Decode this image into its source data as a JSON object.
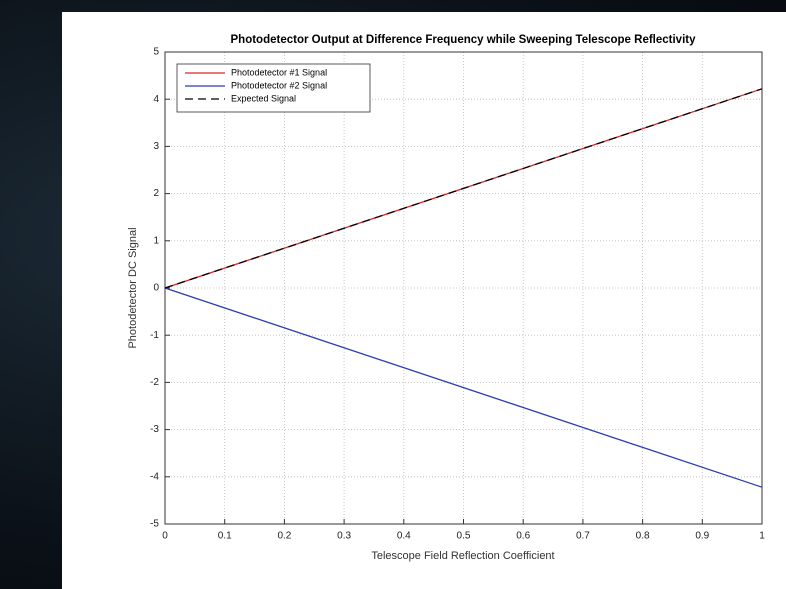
{
  "chart_data": {
    "type": "line",
    "title": "Photodetector Output at Difference Frequency while Sweeping Telescope Reflectivity",
    "x_label": "Telescope Field Reflection Coefficient",
    "y_label": "Photodetector DC Signal",
    "x": [
      0,
      1
    ],
    "series": [
      {
        "name": "Photodetector #1 Signal",
        "color": "#d62728",
        "dash": "solid",
        "values": [
          0,
          4.22
        ]
      },
      {
        "name": "Photodetector #2 Signal",
        "color": "#2a3cb0",
        "dash": "solid",
        "values": [
          0,
          -4.22
        ]
      },
      {
        "name": "Expected Signal",
        "color": "#000000",
        "dash": "dashed",
        "values": [
          0,
          4.22
        ]
      }
    ],
    "xlim": [
      0,
      1
    ],
    "xticks": [
      0,
      0.1,
      0.2,
      0.3,
      0.4,
      0.5,
      0.6,
      0.7,
      0.8,
      0.9,
      1
    ],
    "ylim": [
      -5,
      5
    ],
    "yticks": [
      -5,
      -4,
      -3,
      -2,
      -1,
      0,
      1,
      2,
      3,
      4,
      5
    ],
    "grid": true,
    "legend": "upper left"
  }
}
